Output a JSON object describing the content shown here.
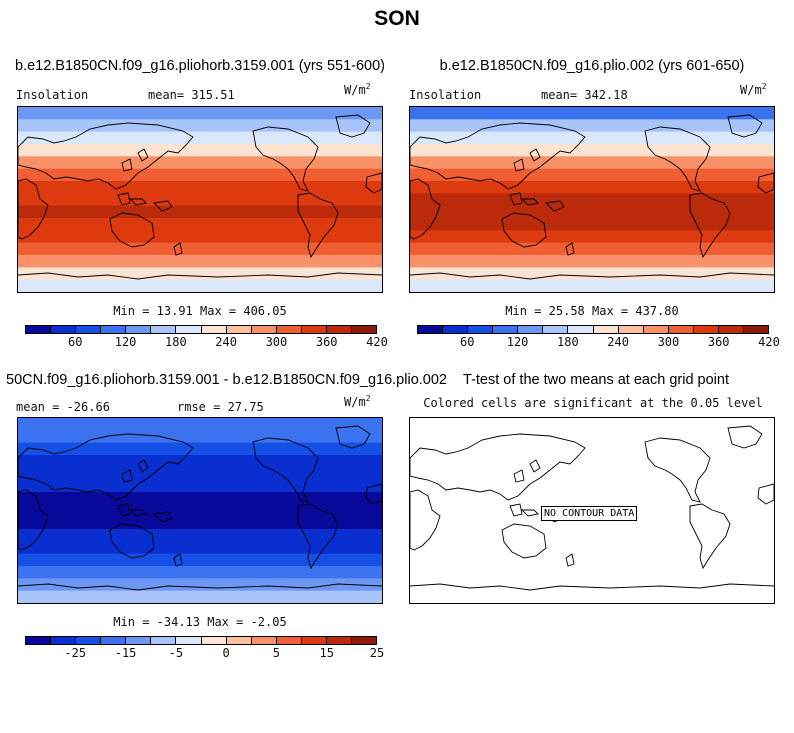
{
  "title": "SON",
  "colors": [
    "#08089a",
    "#0a2fd0",
    "#1550e6",
    "#3a72f0",
    "#6c98f4",
    "#a8c4f8",
    "#dbe8fb",
    "#fde3d2",
    "#fcbf9f",
    "#f99168",
    "#ef5f33",
    "#dd3a10",
    "#bb2a0a",
    "#8c1a06"
  ],
  "panels": {
    "a": {
      "title": "b.e12.B1850CN.f09_g16.pliohorb.3159.001 (yrs 551-600)",
      "left_label": "Insolation",
      "mean_text": "mean= 315.51",
      "units_base": "W/m",
      "units_exp": "2",
      "minmax": "Min =  13.91 Max = 406.05",
      "bands": [
        4,
        5,
        6,
        7,
        9,
        10,
        11,
        11,
        12,
        11,
        11,
        10,
        9,
        7,
        6
      ]
    },
    "b": {
      "title": "b.e12.B1850CN.f09_g16.plio.002 (yrs 601-650)",
      "left_label": "Insolation",
      "mean_text": "mean= 342.18",
      "units_base": "W/m",
      "units_exp": "2",
      "minmax": "Min =  25.58 Max = 437.80",
      "bands": [
        3,
        5,
        6,
        7,
        9,
        10,
        11,
        12,
        12,
        12,
        11,
        10,
        9,
        7,
        6
      ]
    },
    "c": {
      "title": "50CN.f09_g16.pliohorb.3159.001 - b.e12.B1850CN.f09_g16.plio.002",
      "mean_text": "mean = -26.66",
      "rmse_text": "rmse =  27.75",
      "units_base": "W/m",
      "units_exp": "2",
      "minmax": "Min = -34.13 Max =  -2.05",
      "bands": [
        3,
        3,
        2,
        1,
        1,
        1,
        0,
        0,
        0,
        1,
        1,
        2,
        3,
        4,
        5
      ]
    },
    "d": {
      "title": "T-test of the two means at each grid point",
      "subtitle": "Colored cells are significant at the 0.05 level",
      "no_data": "NO CONTOUR DATA"
    }
  },
  "colorbar_top": {
    "ticks": [
      "60",
      "120",
      "180",
      "240",
      "300",
      "360",
      "420"
    ]
  },
  "colorbar_diff": {
    "ticks": [
      "-25",
      "-15",
      "-5",
      "0",
      "5",
      "15",
      "25"
    ]
  }
}
